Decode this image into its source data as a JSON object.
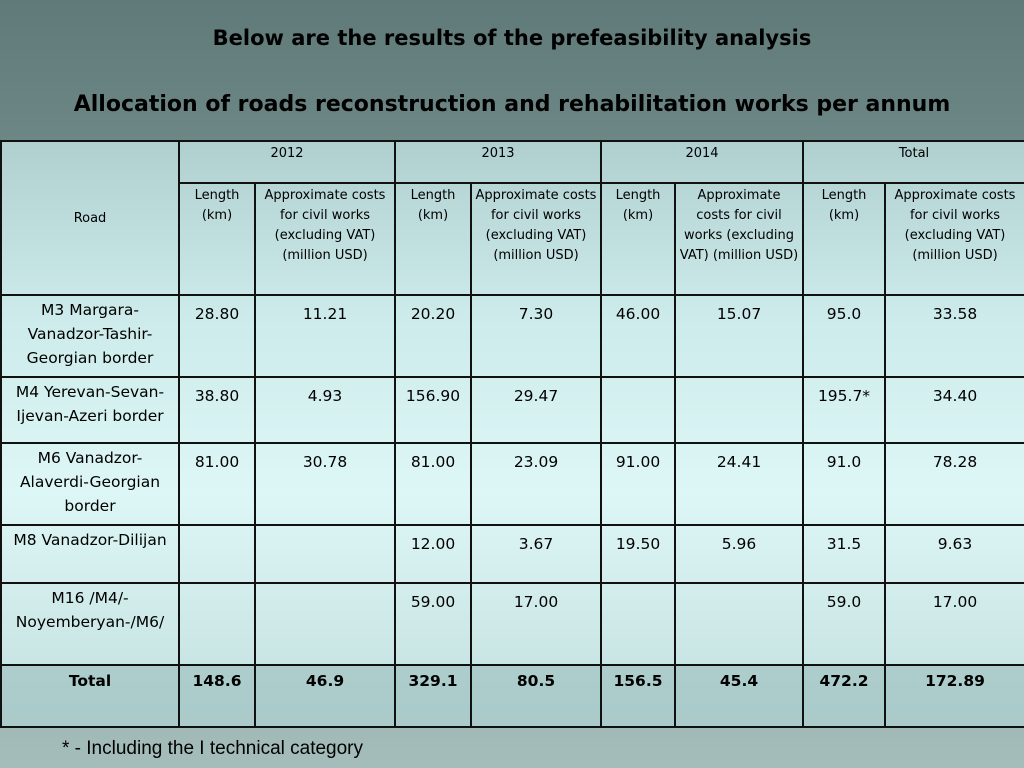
{
  "title1": "Below are the results of the prefeasibility analysis",
  "title2": "Allocation of roads reconstruction and rehabilitation works per annum",
  "table": {
    "road_header": "Road",
    "years": [
      "2012",
      "2013",
      "2014",
      "Total"
    ],
    "sub_headers": [
      "Length (km)",
      "Approximate costs for civil works (excluding VAT) (million USD)"
    ],
    "rows": [
      {
        "road": "M3 Margara-Vanadzor-Tashir-Georgian border",
        "cells": [
          "28.80",
          "11.21",
          "20.20",
          "7.30",
          "46.00",
          "15.07",
          "95.0",
          "33.58"
        ]
      },
      {
        "road": "M4 Yerevan-Sevan-Ijevan-Azeri border",
        "cells": [
          "38.80",
          "4.93",
          "156.90",
          "29.47",
          "",
          "",
          "195.7*",
          "34.40"
        ]
      },
      {
        "road": "M6 Vanadzor-Alaverdi-Georgian border",
        "cells": [
          "81.00",
          "30.78",
          "81.00",
          "23.09",
          "91.00",
          "24.41",
          "91.0",
          "78.28"
        ]
      },
      {
        "road": "M8 Vanadzor-Dilijan",
        "cells": [
          "",
          "",
          "12.00",
          "3.67",
          "19.50",
          "5.96",
          "31.5",
          "9.63"
        ]
      },
      {
        "road": "M16 /M4/-Noyemberyan-/M6/",
        "cells": [
          "",
          "",
          "59.00",
          "17.00",
          "",
          "",
          "59.0",
          "17.00"
        ]
      }
    ],
    "total": {
      "label": "Total",
      "cells": [
        "148.6",
        "46.9",
        "329.1",
        "80.5",
        "156.5",
        "45.4",
        "472.2",
        "172.89"
      ]
    }
  },
  "footnote": "* - Including the I technical category"
}
